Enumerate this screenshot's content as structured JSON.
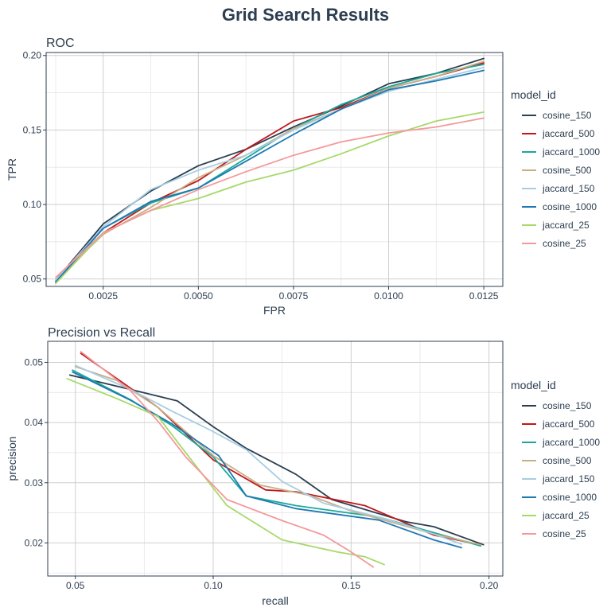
{
  "title": "Grid Search Results",
  "legend_title": "model_id",
  "colors": {
    "cosine_150": "#2c3e50",
    "jaccard_500": "#c0171e",
    "jaccard_1000": "#18a999",
    "cosine_500": "#c9ae85",
    "jaccard_150": "#a6cee3",
    "cosine_1000": "#1f78b4",
    "jaccard_25": "#a6d96a",
    "cosine_25": "#f4999b"
  },
  "chart_data": [
    {
      "type": "line",
      "title": "ROC",
      "xlabel": "FPR",
      "ylabel": "TPR",
      "xlim": [
        0.001,
        0.013
      ],
      "ylim": [
        0.045,
        0.202
      ],
      "xticks": [
        "0.0025",
        "0.0050",
        "0.0075",
        "0.0100",
        "0.0125"
      ],
      "yticks": [
        "0.05",
        "0.10",
        "0.15",
        "0.20"
      ],
      "grid": true,
      "legend": "right",
      "series": [
        {
          "name": "cosine_150",
          "points": [
            [
              0.00125,
              0.049
            ],
            [
              0.0025,
              0.087
            ],
            [
              0.00375,
              0.109
            ],
            [
              0.005,
              0.126
            ],
            [
              0.00625,
              0.137
            ],
            [
              0.0075,
              0.152
            ],
            [
              0.00875,
              0.166
            ],
            [
              0.01,
              0.181
            ],
            [
              0.01125,
              0.188
            ],
            [
              0.0125,
              0.198
            ]
          ]
        },
        {
          "name": "jaccard_500",
          "points": [
            [
              0.00125,
              0.048
            ],
            [
              0.0025,
              0.081
            ],
            [
              0.00375,
              0.101
            ],
            [
              0.005,
              0.116
            ],
            [
              0.00625,
              0.137
            ],
            [
              0.0075,
              0.156
            ],
            [
              0.00875,
              0.165
            ],
            [
              0.01,
              0.178
            ],
            [
              0.01125,
              0.186
            ],
            [
              0.0125,
              0.195
            ]
          ]
        },
        {
          "name": "jaccard_1000",
          "points": [
            [
              0.00125,
              0.048
            ],
            [
              0.0025,
              0.084
            ],
            [
              0.00375,
              0.101
            ],
            [
              0.005,
              0.111
            ],
            [
              0.00625,
              0.131
            ],
            [
              0.0075,
              0.151
            ],
            [
              0.00875,
              0.167
            ],
            [
              0.01,
              0.179
            ],
            [
              0.01125,
              0.188
            ],
            [
              0.0125,
              0.194
            ]
          ]
        },
        {
          "name": "cosine_500",
          "points": [
            [
              0.00125,
              0.049
            ],
            [
              0.0025,
              0.08
            ],
            [
              0.00375,
              0.098
            ],
            [
              0.005,
              0.118
            ],
            [
              0.00625,
              0.133
            ],
            [
              0.0075,
              0.151
            ],
            [
              0.00875,
              0.164
            ],
            [
              0.01,
              0.178
            ],
            [
              0.01125,
              0.186
            ],
            [
              0.0125,
              0.196
            ]
          ]
        },
        {
          "name": "jaccard_150",
          "points": [
            [
              0.00125,
              0.049
            ],
            [
              0.0025,
              0.085
            ],
            [
              0.00375,
              0.11
            ],
            [
              0.005,
              0.123
            ],
            [
              0.00625,
              0.133
            ],
            [
              0.0075,
              0.15
            ],
            [
              0.00875,
              0.164
            ],
            [
              0.01,
              0.176
            ],
            [
              0.01125,
              0.184
            ],
            [
              0.0125,
              0.192
            ]
          ]
        },
        {
          "name": "cosine_1000",
          "points": [
            [
              0.00125,
              0.048
            ],
            [
              0.0025,
              0.084
            ],
            [
              0.00375,
              0.102
            ],
            [
              0.005,
              0.111
            ],
            [
              0.00625,
              0.129
            ],
            [
              0.0075,
              0.147
            ],
            [
              0.00875,
              0.164
            ],
            [
              0.01,
              0.177
            ],
            [
              0.01125,
              0.183
            ],
            [
              0.0125,
              0.19
            ]
          ]
        },
        {
          "name": "jaccard_25",
          "points": [
            [
              0.00125,
              0.047
            ],
            [
              0.0025,
              0.081
            ],
            [
              0.00375,
              0.096
            ],
            [
              0.005,
              0.104
            ],
            [
              0.00625,
              0.115
            ],
            [
              0.0075,
              0.123
            ],
            [
              0.00875,
              0.134
            ],
            [
              0.01,
              0.146
            ],
            [
              0.01125,
              0.156
            ],
            [
              0.0125,
              0.162
            ]
          ]
        },
        {
          "name": "cosine_25",
          "points": [
            [
              0.00125,
              0.051
            ],
            [
              0.0025,
              0.081
            ],
            [
              0.00375,
              0.096
            ],
            [
              0.005,
              0.11
            ],
            [
              0.00625,
              0.122
            ],
            [
              0.0075,
              0.133
            ],
            [
              0.00875,
              0.142
            ],
            [
              0.01,
              0.148
            ],
            [
              0.01125,
              0.152
            ],
            [
              0.0125,
              0.158
            ]
          ]
        }
      ]
    },
    {
      "type": "line",
      "title": "Precision vs Recall",
      "xlabel": "recall",
      "ylabel": "precision",
      "xlim": [
        0.04,
        0.205
      ],
      "ylim": [
        0.0145,
        0.0535
      ],
      "xticks": [
        "0.05",
        "0.10",
        "0.15",
        "0.20"
      ],
      "yticks": [
        "0.02",
        "0.03",
        "0.04",
        "0.05"
      ],
      "grid": true,
      "legend": "right",
      "series": [
        {
          "name": "cosine_150",
          "points": [
            [
              0.048,
              0.0479
            ],
            [
              0.07,
              0.0455
            ],
            [
              0.087,
              0.0436
            ],
            [
              0.1,
              0.0393
            ],
            [
              0.112,
              0.0357
            ],
            [
              0.13,
              0.0314
            ],
            [
              0.143,
              0.0272
            ],
            [
              0.17,
              0.0235
            ],
            [
              0.18,
              0.0227
            ],
            [
              0.198,
              0.0197
            ]
          ]
        },
        {
          "name": "jaccard_500",
          "points": [
            [
              0.052,
              0.0515
            ],
            [
              0.08,
              0.0425
            ],
            [
              0.1,
              0.0338
            ],
            [
              0.119,
              0.0288
            ],
            [
              0.13,
              0.0285
            ],
            [
              0.155,
              0.0262
            ],
            [
              0.18,
              0.0213
            ],
            [
              0.197,
              0.0197
            ]
          ]
        },
        {
          "name": "jaccard_1000",
          "points": [
            [
              0.049,
              0.0487
            ],
            [
              0.07,
              0.0438
            ],
            [
              0.085,
              0.0395
            ],
            [
              0.1,
              0.0343
            ],
            [
              0.112,
              0.0278
            ],
            [
              0.13,
              0.0262
            ],
            [
              0.16,
              0.0243
            ],
            [
              0.18,
              0.0217
            ],
            [
              0.197,
              0.0195
            ]
          ]
        },
        {
          "name": "cosine_500",
          "points": [
            [
              0.05,
              0.0493
            ],
            [
              0.065,
              0.047
            ],
            [
              0.08,
              0.0425
            ],
            [
              0.1,
              0.0345
            ],
            [
              0.117,
              0.0296
            ],
            [
              0.135,
              0.0279
            ],
            [
              0.15,
              0.0253
            ],
            [
              0.18,
              0.0215
            ],
            [
              0.197,
              0.0197
            ]
          ]
        },
        {
          "name": "jaccard_150",
          "points": [
            [
              0.05,
              0.0495
            ],
            [
              0.07,
              0.0455
            ],
            [
              0.085,
              0.0419
            ],
            [
              0.1,
              0.0385
            ],
            [
              0.112,
              0.0355
            ],
            [
              0.125,
              0.0302
            ],
            [
              0.14,
              0.0266
            ],
            [
              0.16,
              0.0243
            ],
            [
              0.178,
              0.0218
            ],
            [
              0.19,
              0.0198
            ]
          ]
        },
        {
          "name": "cosine_1000",
          "points": [
            [
              0.049,
              0.0484
            ],
            [
              0.07,
              0.0437
            ],
            [
              0.085,
              0.0398
            ],
            [
              0.102,
              0.0345
            ],
            [
              0.112,
              0.0278
            ],
            [
              0.13,
              0.0257
            ],
            [
              0.16,
              0.0238
            ],
            [
              0.18,
              0.0205
            ],
            [
              0.19,
              0.0192
            ]
          ]
        },
        {
          "name": "jaccard_25",
          "points": [
            [
              0.047,
              0.0473
            ],
            [
              0.065,
              0.044
            ],
            [
              0.08,
              0.041
            ],
            [
              0.09,
              0.035
            ],
            [
              0.105,
              0.0262
            ],
            [
              0.125,
              0.0205
            ],
            [
              0.145,
              0.0185
            ],
            [
              0.155,
              0.0177
            ],
            [
              0.162,
              0.0164
            ]
          ]
        },
        {
          "name": "cosine_25",
          "points": [
            [
              0.052,
              0.0518
            ],
            [
              0.07,
              0.0453
            ],
            [
              0.08,
              0.0402
            ],
            [
              0.09,
              0.0343
            ],
            [
              0.105,
              0.0272
            ],
            [
              0.125,
              0.0237
            ],
            [
              0.14,
              0.0213
            ],
            [
              0.15,
              0.0185
            ],
            [
              0.158,
              0.016
            ]
          ]
        }
      ]
    }
  ]
}
